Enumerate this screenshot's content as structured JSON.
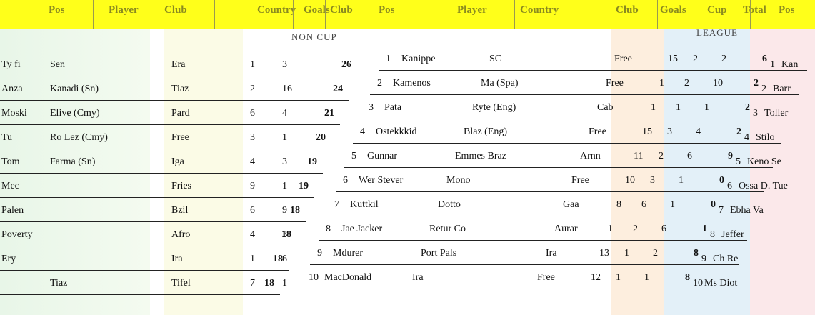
{
  "header": {
    "columns": [
      "Pos",
      "Player",
      "Club",
      "Country",
      "Goals",
      "Club",
      "Pos",
      "Player",
      "Country",
      "Club",
      "Goals",
      "Cup",
      "Total",
      "Pos"
    ]
  },
  "sections": {
    "left_label": "NON CUP",
    "right_label": "LEAGUE"
  },
  "middle_table": {
    "rows": [
      {
        "pos": "1",
        "player": "Kanippe",
        "country": "SC",
        "club": "Free",
        "n1": "15",
        "n2": "2",
        "n3": "2",
        "total": "6"
      },
      {
        "pos": "2",
        "player": "Kamenos",
        "country": "Ma (Spa)",
        "club": "Free",
        "n1": "1",
        "n2": "2",
        "n3": "10",
        "total": "2"
      },
      {
        "pos": "3",
        "player": "Pata",
        "country": "Ryte (Eng)",
        "club": "Cab",
        "n1": "1",
        "n2": "1",
        "n3": "1",
        "total": "2"
      },
      {
        "pos": "4",
        "player": "Ostekkkid",
        "country": "Blaz (Eng)",
        "club": "Free",
        "n1": "15",
        "n2": "3",
        "n3": "4",
        "total": "2"
      },
      {
        "pos": "5",
        "player": "Gunnar",
        "country": "Emmes Braz",
        "club": "Arnn",
        "n1": "11",
        "n2": "2",
        "n3": "6",
        "total": "9"
      },
      {
        "pos": "6",
        "player": "Wer Stever",
        "country": "Mono",
        "club": "Free",
        "n1": "10",
        "n2": "3",
        "n3": "1",
        "total": "0"
      },
      {
        "pos": "7",
        "player": "Kuttkil",
        "country": "Dotto",
        "club": "Gaa",
        "n1": "8",
        "n2": "6",
        "n3": "1",
        "total": "0"
      },
      {
        "pos": "8",
        "player": "Jae Jacker",
        "country": "Retur Co",
        "club": "Aurar",
        "n1": "1",
        "n2": "2",
        "n3": "6",
        "total": "1"
      },
      {
        "pos": "9",
        "player": "Mdurer",
        "country": "Port Pals",
        "club": "Ira",
        "n1": "13",
        "n2": "1",
        "n3": "2",
        "total": "8"
      },
      {
        "pos": "10",
        "player": "MacDonald",
        "country": "Ira",
        "club": "Free",
        "n1": "12",
        "n2": "1",
        "n3": "1",
        "total": "8"
      }
    ]
  },
  "left_table": {
    "rows": [
      {
        "a": "Ty fi",
        "b": "Sen",
        "c": "Era",
        "n1": "1",
        "n2": "3",
        "total": "26"
      },
      {
        "a": "Anza",
        "b": "Kanadi (Sn)",
        "c": "Tiaz",
        "n1": "2",
        "n2": "16",
        "total": "24"
      },
      {
        "a": "Moski",
        "b": "Elive (Cmy)",
        "c": "Pard",
        "n1": "6",
        "n2": "4",
        "total": "21"
      },
      {
        "a": "Tu",
        "b": "Ro Lez (Cmy)",
        "c": "Free",
        "n1": "3",
        "n2": "1",
        "total": "20"
      },
      {
        "a": "Tom",
        "b": "Farma (Sn)",
        "c": "Iga",
        "n1": "4",
        "n2": "3",
        "total": "19"
      },
      {
        "a": "Mec",
        "b": "",
        "c": "Fries",
        "n1": "9",
        "n2": "1",
        "total": "19"
      },
      {
        "a": "Palen",
        "b": "",
        "c": "Bzil",
        "n1": "6",
        "n2": "9",
        "total": "18"
      },
      {
        "a": "Poverty",
        "b": "",
        "c": "Afro",
        "n1": "4",
        "n2": "3",
        "total": "18"
      },
      {
        "a": "Ery",
        "b": "",
        "c": "Ira",
        "n1": "1",
        "n2": "6",
        "total": "18"
      },
      {
        "a": "",
        "b": "Tiaz",
        "c": "Tifel",
        "n1": "7",
        "n2": "1",
        "total": "18"
      }
    ]
  },
  "right_table": {
    "rows": [
      {
        "pos": "1",
        "name": "Kan"
      },
      {
        "pos": "2",
        "name": "Barr"
      },
      {
        "pos": "3",
        "name": "Toller"
      },
      {
        "pos": "4",
        "name": "Stilo"
      },
      {
        "pos": "5",
        "name": "Keno Se"
      },
      {
        "pos": "6",
        "name": "Ossa D. Tue"
      },
      {
        "pos": "7",
        "name": "Ebha Va"
      },
      {
        "pos": "8",
        "name": "Jeffer"
      },
      {
        "pos": "9",
        "name": "Ch Re"
      },
      {
        "pos": "10",
        "name": "Ms Diot"
      }
    ]
  }
}
